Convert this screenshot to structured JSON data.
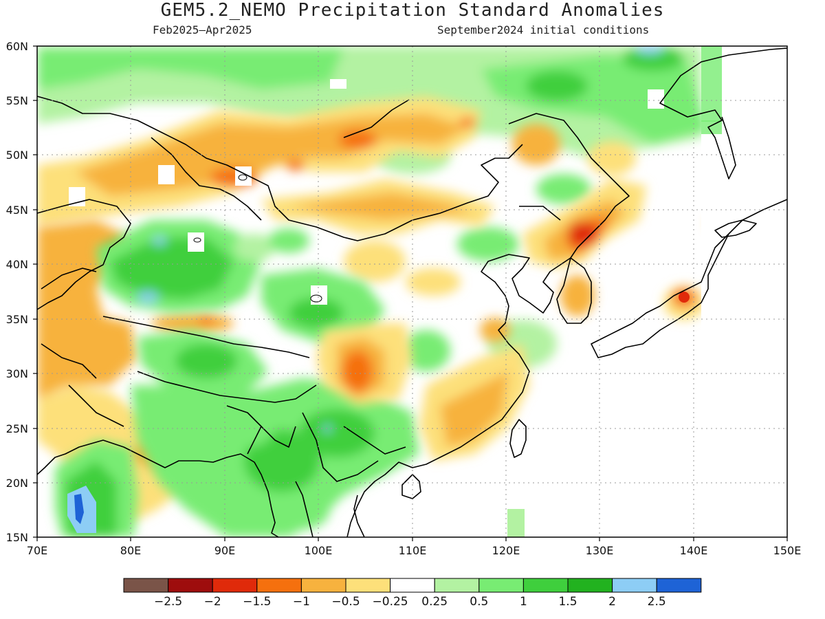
{
  "header": {
    "title": "GEM5.2_NEMO Precipitation Standard Anomalies",
    "period": "Feb2025–Apr2025",
    "initial_conditions": "September2024 initial conditions"
  },
  "map": {
    "lon_range": [
      70,
      150
    ],
    "lat_range": [
      15,
      60
    ],
    "lat_ticks": [
      "15N",
      "20N",
      "25N",
      "30N",
      "35N",
      "40N",
      "45N",
      "50N",
      "55N",
      "60N"
    ],
    "lon_ticks": [
      "70E",
      "80E",
      "90E",
      "100E",
      "110E",
      "120E",
      "130E",
      "140E",
      "150E"
    ],
    "grid": "dotted"
  },
  "colorbar": {
    "colors": [
      "#7a5448",
      "#9e0d0d",
      "#e02a0a",
      "#f5700e",
      "#f7b23e",
      "#fde07a",
      "#ffffff",
      "#b3f2a2",
      "#78ec73",
      "#3fcf3d",
      "#22b21f",
      "#8dcdf5",
      "#1e63d6"
    ],
    "labels": [
      "−2.5",
      "−2",
      "−1.5",
      "−1",
      "−0.5",
      "−0.25",
      "0.25",
      "0.5",
      "1",
      "1.5",
      "2",
      "2.5"
    ]
  },
  "chart_data": {
    "type": "heatmap",
    "title": "GEM5.2_NEMO Precipitation Standard Anomalies",
    "subtitle": "Feb2025–Apr2025 | September2024 initial conditions",
    "xlim": [
      70,
      150
    ],
    "ylim": [
      15,
      60
    ],
    "levels": [
      -2.5,
      -2,
      -1.5,
      -1,
      -0.5,
      -0.25,
      0.25,
      0.5,
      1,
      1.5,
      2,
      2.5
    ],
    "anomaly_centers": [
      {
        "lon": 80,
        "lat": 38,
        "value": 1.5
      },
      {
        "lon": 83,
        "lat": 36,
        "value": 2.5
      },
      {
        "lon": 74,
        "lat": 17,
        "value": 2.5
      },
      {
        "lon": 100,
        "lat": 35,
        "value": 1.2
      },
      {
        "lon": 88,
        "lat": 31,
        "value": 1.2
      },
      {
        "lon": 97,
        "lat": 23,
        "value": 1.5
      },
      {
        "lon": 102,
        "lat": 25,
        "value": 1.5
      },
      {
        "lon": 125,
        "lat": 56,
        "value": 1.8
      },
      {
        "lon": 132,
        "lat": 59,
        "value": 1.8
      },
      {
        "lon": 128,
        "lat": 43,
        "value": -2.0
      },
      {
        "lon": 104,
        "lat": 30,
        "value": -1.5
      },
      {
        "lon": 104,
        "lat": 51,
        "value": -1.5
      },
      {
        "lon": 92,
        "lat": 48,
        "value": -1.2
      },
      {
        "lon": 139,
        "lat": 37,
        "value": -2.0
      },
      {
        "lon": 123,
        "lat": 51,
        "value": -0.7
      },
      {
        "lon": 72,
        "lat": 35,
        "value": -0.7
      },
      {
        "lon": 118,
        "lat": 28,
        "value": -0.5
      }
    ]
  }
}
